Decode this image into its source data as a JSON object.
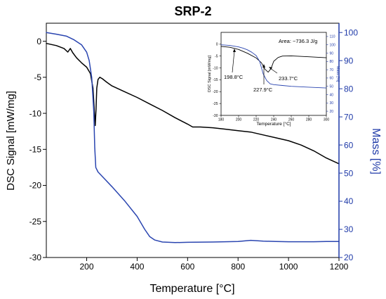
{
  "chart_data": [
    {
      "type": "line",
      "title": "SRP-2",
      "xlabel": "Temperature [°C]",
      "ylabel": "DSC Signal [mW/mg]",
      "y2label": "Mass [%]",
      "xlim": [
        40,
        1200
      ],
      "ylim": [
        -30,
        2.5
      ],
      "y2lim": [
        20,
        103.3
      ],
      "x_ticks": [
        "200",
        "400",
        "600",
        "800",
        "1000",
        "1200"
      ],
      "y_ticks": [
        "0",
        "-5",
        "-10",
        "-15",
        "-20",
        "-25",
        "-30"
      ],
      "y2_ticks": [
        "20",
        "30",
        "40",
        "50",
        "60",
        "70",
        "80",
        "90",
        "100"
      ],
      "colors": {
        "dsc": "#000000",
        "mass": "#2a45b0",
        "right_axis": "#1f3aa8"
      },
      "series": [
        {
          "axis": "left",
          "color": "#000000",
          "x": [
            40,
            80,
            110,
            125,
            135,
            145,
            160,
            180,
            200,
            215,
            225,
            230,
            234,
            237,
            240,
            245,
            252,
            262,
            280,
            300,
            350,
            400,
            450,
            500,
            550,
            600,
            620,
            650,
            700,
            750,
            800,
            850,
            900,
            950,
            1000,
            1050,
            1100,
            1150,
            1200
          ],
          "values": [
            -0.3,
            -0.6,
            -1.0,
            -1.5,
            -1.0,
            -1.6,
            -2.3,
            -3.0,
            -3.6,
            -4.5,
            -6.5,
            -9.5,
            -11.7,
            -9.5,
            -6.5,
            -5.3,
            -5.0,
            -5.2,
            -5.7,
            -6.2,
            -7.0,
            -7.8,
            -8.7,
            -9.6,
            -10.6,
            -11.5,
            -11.9,
            -11.9,
            -12.0,
            -12.2,
            -12.4,
            -12.6,
            -13.0,
            -13.4,
            -13.8,
            -14.4,
            -15.2,
            -16.2,
            -17.0
          ]
        },
        {
          "axis": "right",
          "color": "#2a45b0",
          "x": [
            40,
            80,
            120,
            150,
            180,
            200,
            210,
            220,
            228,
            232,
            236,
            245,
            260,
            300,
            350,
            400,
            430,
            450,
            470,
            500,
            550,
            600,
            700,
            800,
            850,
            900,
            950,
            1000,
            1100,
            1150,
            1200
          ],
          "values": [
            100,
            99.4,
            98.7,
            97.4,
            95.6,
            93.0,
            90.0,
            84.0,
            72.0,
            59.0,
            52.0,
            50.4,
            49.0,
            45.2,
            40.2,
            34.6,
            30.0,
            27.4,
            26.2,
            25.5,
            25.3,
            25.4,
            25.5,
            25.7,
            26.1,
            25.8,
            25.7,
            25.6,
            25.6,
            25.7,
            25.7
          ]
        }
      ]
    },
    {
      "type": "line",
      "xlabel": "Temperature [°C]",
      "ylabel": "DSC Signal [mW/mg]",
      "y2label": "Mass [%]",
      "xlim": [
        180,
        300
      ],
      "ylim": [
        -30,
        5
      ],
      "y2lim": [
        15,
        115
      ],
      "x_ticks": [
        "180",
        "200",
        "220",
        "240",
        "260",
        "280",
        "300"
      ],
      "y_ticks": [
        "0",
        "-5",
        "-10",
        "-15",
        "-20",
        "-25",
        "-30"
      ],
      "y2_ticks": [
        "20",
        "30",
        "40",
        "50",
        "60",
        "70",
        "80",
        "90",
        "100",
        "110"
      ],
      "annotations": [
        "Area: −736.3 J/g",
        "198.8°C",
        "227.9°C",
        "233.7°C"
      ],
      "series": [
        {
          "axis": "left",
          "color": "#000000",
          "x": [
            180,
            190,
            200,
            210,
            220,
            226,
            230,
            233.7,
            237,
            240,
            245,
            250,
            260,
            270,
            280,
            300
          ],
          "values": [
            -0.9,
            -1.3,
            -2.2,
            -3.8,
            -5.8,
            -7.8,
            -10.5,
            -11.8,
            -10.2,
            -7.2,
            -5.6,
            -5.0,
            -4.9,
            -5.1,
            -5.3,
            -5.7
          ]
        },
        {
          "axis": "right",
          "color": "#2a45b0",
          "x": [
            180,
            190,
            200,
            205,
            210,
            215,
            220,
            224,
            228,
            232,
            236,
            240,
            250,
            260,
            280,
            300
          ],
          "values": [
            100,
            99.2,
            97.5,
            96,
            94,
            91,
            87,
            80,
            65,
            57,
            53,
            52,
            51,
            50,
            49,
            48
          ]
        }
      ]
    }
  ]
}
